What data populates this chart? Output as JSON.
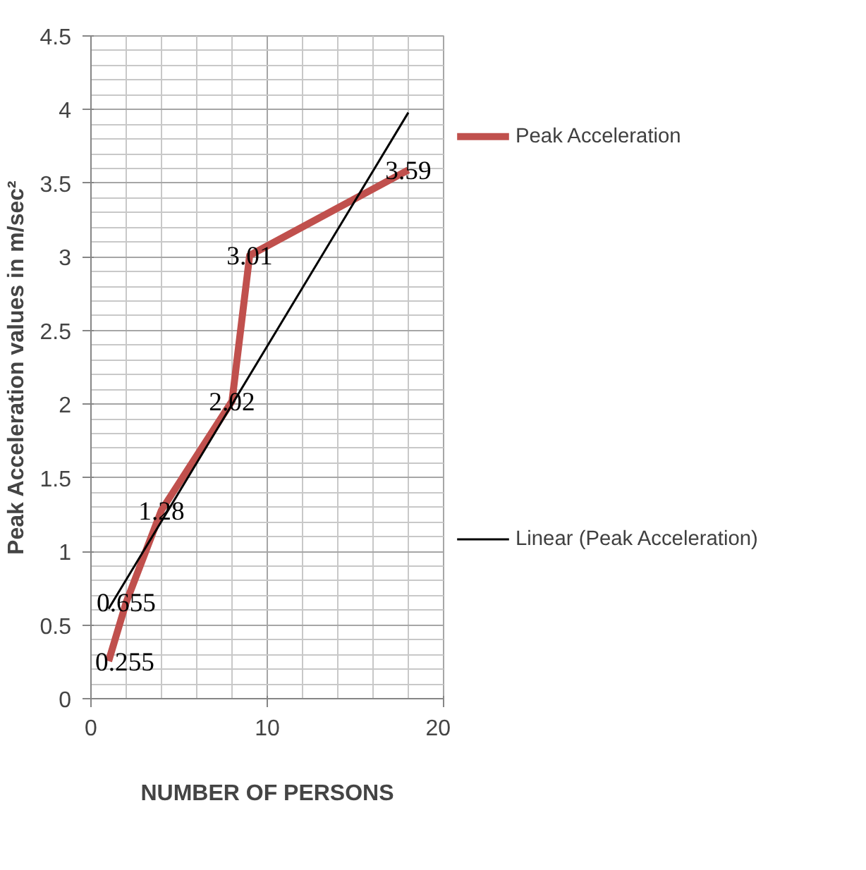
{
  "chart_data": {
    "type": "line",
    "xlabel": "NUMBER OF PERSONS",
    "ylabel": "Peak Acceleration values in m/sec²",
    "xlim": [
      0,
      20
    ],
    "xticks": [
      0,
      10,
      20
    ],
    "ylim": [
      0,
      4.5
    ],
    "yticks": [
      0,
      0.5,
      1,
      1.5,
      2,
      2.5,
      3,
      3.5,
      4,
      4.5
    ],
    "grid": true,
    "legend": "right",
    "data_labels": true,
    "series": [
      {
        "name": "Peak Acceleration",
        "color": "#c0504d",
        "x": [
          1,
          2,
          4,
          8,
          9,
          18
        ],
        "values": [
          0.255,
          0.655,
          1.28,
          2.02,
          3.01,
          3.59
        ]
      },
      {
        "name": "Linear (Peak Acceleration)",
        "color": "#000000",
        "x": [
          1,
          18
        ],
        "values": [
          0.61,
          3.98
        ],
        "data_labels": false
      }
    ]
  }
}
